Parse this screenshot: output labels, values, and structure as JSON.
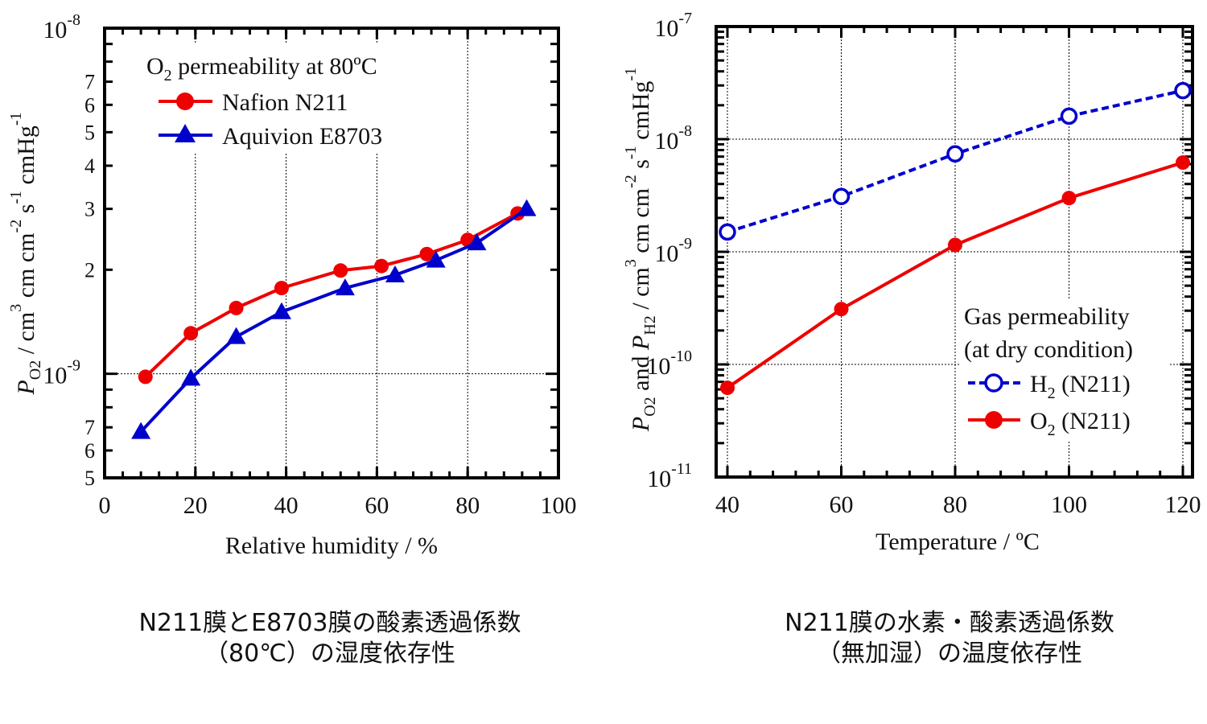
{
  "chart_data": [
    {
      "type": "line",
      "id": "left",
      "title": "",
      "xlabel": "Relative humidity  /  %",
      "ylabel_parts": {
        "P": "P",
        "sub": "O2",
        "rest": "  /  cm",
        "sup3": "3",
        "cm1": " cm cm",
        "sup_m2": "-2",
        "s": " s",
        "sup_m1a": "-1",
        "cmHg": " cmHg",
        "sup_m1b": "-1"
      },
      "xlim": [
        0,
        100
      ],
      "ylim": [
        5e-10,
        1e-08
      ],
      "yscale": "log",
      "x_ticks": [
        "0",
        "20",
        "40",
        "60",
        "80",
        "100"
      ],
      "y_major_labels": [
        {
          "value": 1e-08,
          "base": "10",
          "exp": "-8"
        },
        {
          "value": 1e-09,
          "base": "10",
          "exp": "-9"
        }
      ],
      "y_minor_labels": [
        {
          "value": 7e-09,
          "label": "7"
        },
        {
          "value": 6e-09,
          "label": "6"
        },
        {
          "value": 5e-09,
          "label": "5"
        },
        {
          "value": 4e-09,
          "label": "4"
        },
        {
          "value": 3e-09,
          "label": "3"
        },
        {
          "value": 2e-09,
          "label": "2"
        },
        {
          "value": 7e-10,
          "label": "7"
        },
        {
          "value": 6e-10,
          "label": "6"
        },
        {
          "value": 5e-10,
          "label": "5"
        }
      ],
      "grid": true,
      "legend": {
        "placement": "top-left",
        "title_main": "O",
        "title_sub": "2",
        "title_rest": " permeability at 80ºC"
      },
      "series": [
        {
          "name": "Nafion N211",
          "color": "#ee0000",
          "marker": "circle-filled",
          "dash": false,
          "x": [
            9,
            19,
            29,
            39,
            52,
            61,
            71,
            80,
            91
          ],
          "y": [
            9.8e-10,
            1.31e-09,
            1.55e-09,
            1.77e-09,
            1.99e-09,
            2.05e-09,
            2.22e-09,
            2.44e-09,
            2.91e-09
          ]
        },
        {
          "name": "Aquivion E8703",
          "color": "#0000cc",
          "marker": "triangle-filled",
          "dash": false,
          "x": [
            8,
            19,
            29,
            39,
            53,
            64,
            73,
            82,
            93
          ],
          "y": [
            6.8e-10,
            9.7e-10,
            1.28e-09,
            1.51e-09,
            1.77e-09,
            1.93e-09,
            2.13e-09,
            2.39e-09,
            3e-09
          ]
        }
      ]
    },
    {
      "type": "line",
      "id": "right",
      "title": "",
      "xlabel": "Temperature / ºC",
      "xlim": [
        40,
        120
      ],
      "ylim": [
        1e-11,
        1e-07
      ],
      "yscale": "log",
      "x_ticks": [
        "40",
        "60",
        "80",
        "100",
        "120"
      ],
      "y_major_labels": [
        {
          "value": 1e-07,
          "base": "10",
          "exp": "-7"
        },
        {
          "value": 1e-08,
          "base": "10",
          "exp": "-8"
        },
        {
          "value": 1e-09,
          "base": "10",
          "exp": "-9"
        },
        {
          "value": 1e-10,
          "base": "10",
          "exp": "-10"
        },
        {
          "value": 1e-11,
          "base": "10",
          "exp": "-11"
        }
      ],
      "grid": true,
      "legend": {
        "placement": "bottom-right",
        "title_line1": "Gas permeability",
        "title_line2": "(at dry condition)"
      },
      "series": [
        {
          "name": "H2 (N211)",
          "label_main": "H",
          "label_sub": "2",
          "label_rest": " (N211)",
          "color": "#0000cc",
          "marker": "circle-open",
          "dash": true,
          "x": [
            40,
            60,
            80,
            100,
            120
          ],
          "y": [
            1.5e-09,
            3.1e-09,
            7.4e-09,
            1.6e-08,
            2.7e-08
          ]
        },
        {
          "name": "O2 (N211)",
          "label_main": "O",
          "label_sub": "2",
          "label_rest": " (N211)",
          "color": "#ee0000",
          "marker": "circle-filled",
          "dash": false,
          "x": [
            40,
            60,
            80,
            100,
            120
          ],
          "y": [
            6.2e-11,
            3.1e-10,
            1.15e-09,
            3e-09,
            6.2e-09
          ]
        }
      ]
    }
  ],
  "right_ylabel_parts": {
    "P1": "P",
    "sub1": "O2",
    "and": " and ",
    "P2": "P",
    "sub2": "H2",
    "rest": "  /  cm",
    "sup3": "3",
    "cm1": " cm cm",
    "sup_m2": "-2",
    "s": " s",
    "sup_m1a": "-1",
    "cmHg": " cmHg",
    "sup_m1b": "-1"
  },
  "captions": {
    "left_line1": "N211膜とE8703膜の酸素透過係数",
    "left_line2": "（80℃）の湿度依存性",
    "right_line1": "N211膜の水素・酸素透過係数",
    "right_line2": "（無加湿）の温度依存性"
  }
}
